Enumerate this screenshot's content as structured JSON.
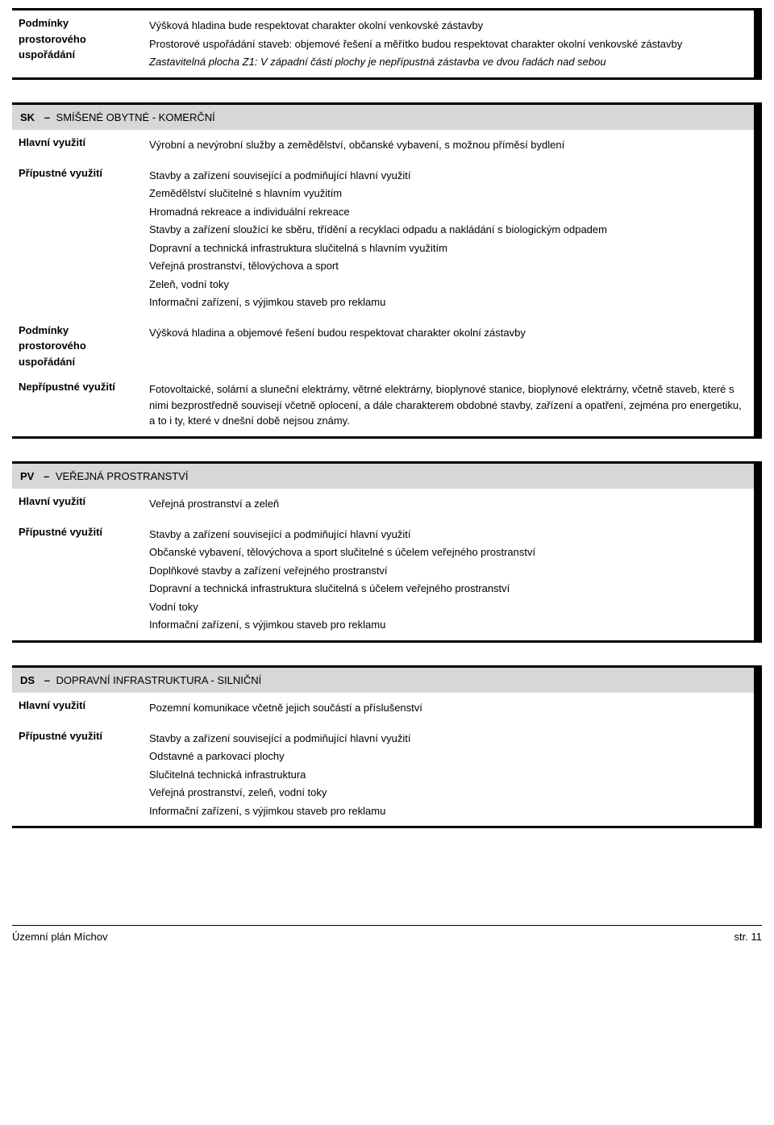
{
  "block1": {
    "label": "Podmínky prostorového uspořádání",
    "lines": [
      "Výšková hladina bude respektovat charakter okolní venkovské zástavby",
      "Prostorové uspořádání staveb: objemové řešení a měřítko budou respektovat charakter okolní venkovské zástavby"
    ],
    "italic_line": "Zastavitelná plocha Z1: V západní části plochy je nepřípustná zástavba ve dvou řadách nad sebou"
  },
  "block2": {
    "code": "SK",
    "title": "SMÍŠENÉ OBYTNÉ - KOMERČNÍ",
    "rows": [
      {
        "label": "Hlavní využití",
        "lines": [
          "Výrobní a nevýrobní služby a zemědělství, občanské vybavení, s možnou příměsí bydlení"
        ]
      },
      {
        "label": "Přípustné využití",
        "lines": [
          "Stavby a zařízení související a podmiňující hlavní využití",
          "Zemědělství slučitelné s hlavním využitím",
          "Hromadná rekreace a individuální rekreace",
          "Stavby a zařízení sloužící ke sběru, třídění a recyklaci odpadu a nakládání s biologickým odpadem",
          "Dopravní a technická infrastruktura slučitelná s hlavním využitím",
          "Veřejná prostranství, tělovýchova a sport",
          "Zeleň, vodní toky",
          "Informační zařízení, s výjimkou staveb pro reklamu"
        ]
      },
      {
        "label": "Podmínky prostorového uspořádání",
        "lines": [
          "Výšková hladina a objemové řešení budou respektovat charakter okolní zástavby"
        ]
      },
      {
        "label": "Nepřípustné využití",
        "lines": [
          "Fotovoltaické, solární a sluneční elektrárny, větrné elektrárny, bioplynové stanice, bioplynové elektrárny, včetně staveb, které s nimi bezprostředně souvisejí včetně oplocení, a dále charakterem obdobné stavby, zařízení a opatření, zejména pro energetiku, a to i ty, které v dnešní době nejsou známy."
        ]
      }
    ]
  },
  "block3": {
    "code": "PV",
    "title": "VEŘEJNÁ PROSTRANSTVÍ",
    "rows": [
      {
        "label": "Hlavní využití",
        "lines": [
          "Veřejná prostranství a zeleň"
        ]
      },
      {
        "label": "Přípustné využití",
        "lines": [
          "Stavby a zařízení související a podmiňující hlavní využití",
          "Občanské vybavení, tělovýchova a sport slučitelné s účelem veřejného prostranství",
          "Doplňkové stavby a zařízení veřejného prostranství",
          "Dopravní a technická infrastruktura slučitelná s účelem veřejného prostranství",
          "Vodní toky",
          "Informační zařízení, s výjimkou staveb pro reklamu"
        ]
      }
    ]
  },
  "block4": {
    "code": "DS",
    "title": "DOPRAVNÍ INFRASTRUKTURA - SILNIČNÍ",
    "rows": [
      {
        "label": "Hlavní využití",
        "lines": [
          "Pozemní komunikace včetně jejich součástí a příslušenství"
        ]
      },
      {
        "label": "Přípustné využití",
        "lines": [
          "Stavby a zařízení související a podmiňující hlavní využití",
          "Odstavné a parkovací plochy",
          "Slučitelná technická infrastruktura",
          "Veřejná prostranství, zeleň, vodní toky",
          "Informační zařízení, s výjimkou staveb pro reklamu"
        ]
      }
    ]
  },
  "footer": {
    "left": "Územní plán Míchov",
    "right": "str. 11"
  }
}
